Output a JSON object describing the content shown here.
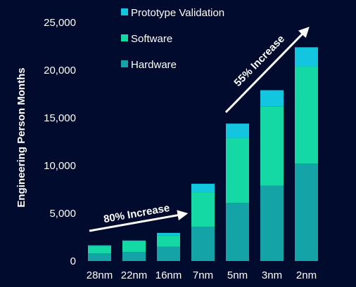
{
  "chart_data": {
    "type": "bar",
    "stacked": true,
    "categories": [
      "28nm",
      "22nm",
      "16nm",
      "7nm",
      "5nm",
      "3nm",
      "2nm"
    ],
    "series": [
      {
        "name": "Hardware",
        "color": "#14a3a6",
        "values": [
          800,
          950,
          1500,
          3600,
          6100,
          7900,
          10200
        ]
      },
      {
        "name": "Software",
        "color": "#14d9a5",
        "values": [
          800,
          1150,
          1200,
          3600,
          6800,
          8300,
          10200
        ]
      },
      {
        "name": "Prototype Validation",
        "color": "#12c6e0",
        "values": [
          50,
          50,
          250,
          900,
          1500,
          1700,
          2000
        ]
      }
    ],
    "legend_order": [
      "Prototype Validation",
      "Software",
      "Hardware"
    ],
    "legend_position": "top",
    "ylabel": "Engineering Person Months",
    "yticks": [
      "0",
      "5,000",
      "10,000",
      "15,000",
      "20,000",
      "25,000"
    ],
    "yticks_values": [
      0,
      5000,
      10000,
      15000,
      20000,
      25000
    ],
    "ylim": [
      0,
      25000
    ],
    "grid": false,
    "annotations": [
      {
        "text": "80% Increase",
        "from_category": "28nm",
        "to_category": "16nm"
      },
      {
        "text": "55% Increase",
        "from_category": "5nm",
        "to_category": "2nm"
      }
    ]
  }
}
